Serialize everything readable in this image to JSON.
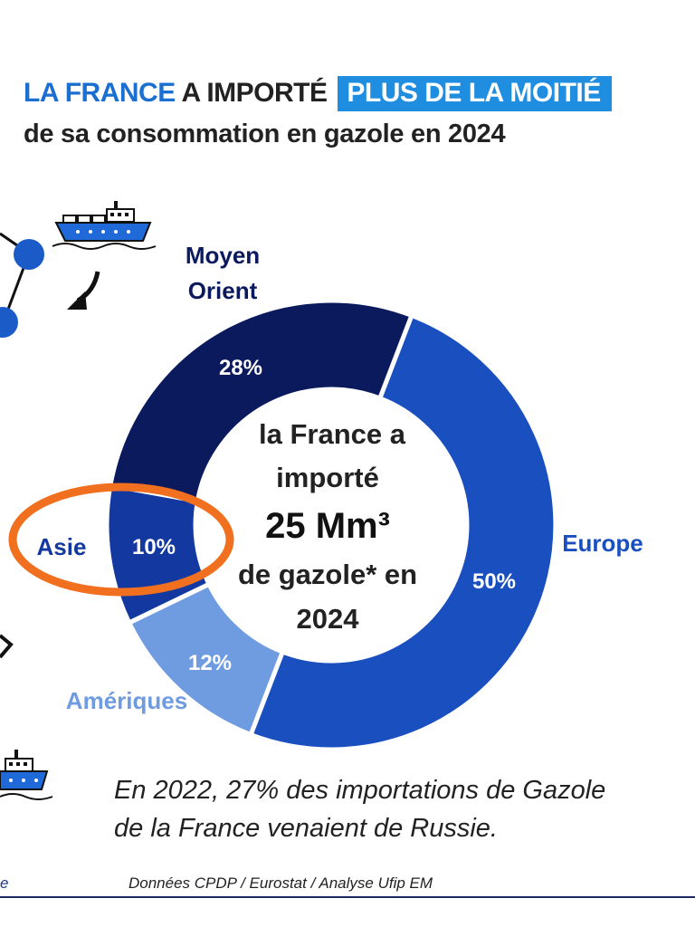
{
  "header": {
    "part1": "LA FRANCE",
    "part2": "A IMPORTÉ",
    "highlight": "PLUS DE LA MOITIÉ",
    "line2": "de sa consommation en gazole en 2024"
  },
  "chart_data": {
    "type": "pie",
    "style": "donut",
    "title": "LA FRANCE A IMPORTÉ PLUS DE LA MOITIÉ de sa consommation en gazole en 2024",
    "categories": [
      "Moyen Orient",
      "Europe",
      "Amériques",
      "Asie"
    ],
    "values": [
      28,
      50,
      12,
      10
    ],
    "value_labels": [
      "28%",
      "50%",
      "12%",
      "10%"
    ],
    "colors": [
      "#0b1a5c",
      "#1a4fc0",
      "#6f9be0",
      "#1338a0"
    ],
    "center_text": {
      "line1": "la France a",
      "line2": "importé",
      "line3": "25 Mm³",
      "line4": "de gazole* en",
      "line5": "2024"
    },
    "highlighted_category": "Asie"
  },
  "labels": {
    "moyen_line1": "Moyen",
    "moyen_line2": "Orient",
    "europe": "Europe",
    "ameriques": "Amériques",
    "asie": "Asie"
  },
  "footnote": {
    "line1": "En 2022, 27% des importations de Gazole",
    "line2": "de la France venaient de Russie."
  },
  "source": "Données CPDP  / Eurostat /  Analyse Ufip EM",
  "source_left": "e"
}
